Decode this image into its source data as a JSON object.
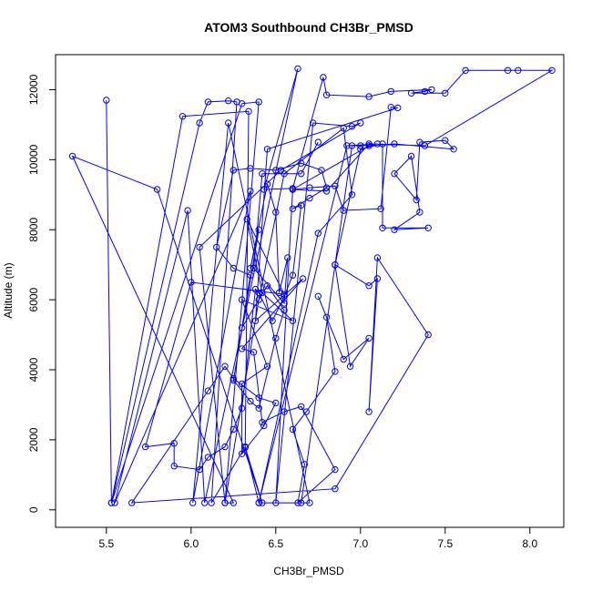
{
  "chart_data": {
    "type": "line",
    "title": "ATOM3 Southbound CH3Br_PMSD",
    "xlabel": "CH3Br_PMSD",
    "ylabel": "Altitude (m)",
    "xlim": [
      5.2,
      8.2
    ],
    "ylim": [
      -500,
      13000
    ],
    "x_ticks": [
      5.5,
      6.0,
      6.5,
      7.0,
      7.5,
      8.0
    ],
    "x_tick_labels": [
      "5.5",
      "6.0",
      "6.5",
      "7.0",
      "7.5",
      "8.0"
    ],
    "y_ticks": [
      0,
      2000,
      4000,
      6000,
      8000,
      10000,
      12000
    ],
    "y_tick_labels": [
      "0",
      "2000",
      "4000",
      "6000",
      "8000",
      "10000",
      "12000"
    ],
    "grid": false,
    "legend": "none",
    "marker": "open-circle",
    "series_color": "#0000ff",
    "series": [
      {
        "points": [
          [
            5.5,
            11700
          ],
          [
            5.53,
            200
          ],
          [
            6.05,
            11050
          ],
          [
            6.1,
            11650
          ],
          [
            6.22,
            11680
          ],
          [
            6.27,
            11650
          ],
          [
            6.12,
            200
          ],
          [
            6.32,
            1800
          ],
          [
            6.34,
            11380
          ],
          [
            5.95,
            11240
          ],
          [
            5.53,
            200
          ],
          [
            6.3,
            11600
          ],
          [
            6.4,
            11650
          ],
          [
            6.2,
            200
          ],
          [
            6.25,
            200
          ],
          [
            5.3,
            10100
          ],
          [
            5.8,
            9150
          ],
          [
            6.42,
            200
          ],
          [
            6.32,
            1780
          ],
          [
            6.4,
            200
          ],
          [
            6.7,
            200
          ],
          [
            6.22,
            11050
          ],
          [
            6.01,
            200
          ],
          [
            6.35,
            9100
          ],
          [
            5.55,
            200
          ],
          [
            5.98,
            8550
          ],
          [
            6.08,
            200
          ],
          [
            6.63,
            12600
          ],
          [
            6.43,
            9150
          ],
          [
            6.6,
            9180
          ],
          [
            6.78,
            12350
          ],
          [
            6.8,
            11850
          ],
          [
            7.05,
            11800
          ],
          [
            7.18,
            11950
          ],
          [
            7.42,
            12000
          ],
          [
            7.38,
            11950
          ],
          [
            7.3,
            11900
          ],
          [
            7.5,
            11900
          ],
          [
            7.62,
            12550
          ],
          [
            7.87,
            12550
          ],
          [
            7.93,
            12550
          ],
          [
            8.13,
            12550
          ],
          [
            7.38,
            10400
          ],
          [
            7.05,
            10450
          ],
          [
            6.8,
            9100
          ],
          [
            6.6,
            9150
          ],
          [
            6.5,
            200
          ],
          [
            6.72,
            11050
          ],
          [
            6.95,
            10950
          ],
          [
            7.0,
            11050
          ],
          [
            6.53,
            9700
          ],
          [
            6.05,
            7500
          ],
          [
            6.2,
            200
          ],
          [
            6.4,
            6000
          ],
          [
            6.55,
            9600
          ],
          [
            6.9,
            10900
          ],
          [
            6.95,
            9000
          ],
          [
            6.75,
            7900
          ],
          [
            6.4,
            200
          ],
          [
            6.92,
            10400
          ],
          [
            7.1,
            10450
          ],
          [
            7.0,
            10400
          ],
          [
            6.95,
            10400
          ],
          [
            6.65,
            200
          ],
          [
            6.85,
            7000
          ],
          [
            7.0,
            10300
          ],
          [
            7.13,
            10450
          ],
          [
            7.13,
            8050
          ],
          [
            7.4,
            8050
          ],
          [
            7.2,
            8000
          ],
          [
            7.35,
            8500
          ],
          [
            7.3,
            10100
          ],
          [
            7.2,
            9600
          ],
          [
            7.33,
            8850
          ],
          [
            7.35,
            10500
          ],
          [
            7.5,
            10550
          ],
          [
            7.55,
            10300
          ],
          [
            7.2,
            10450
          ],
          [
            7.05,
            10400
          ],
          [
            6.6,
            9150
          ],
          [
            6.7,
            9200
          ],
          [
            6.85,
            9250
          ],
          [
            6.9,
            8550
          ],
          [
            7.12,
            8600
          ],
          [
            7.18,
            11500
          ],
          [
            7.22,
            11480
          ],
          [
            6.45,
            10300
          ],
          [
            6.38,
            5400
          ],
          [
            6.66,
            6600
          ],
          [
            6.3,
            4600
          ],
          [
            6.37,
            4500
          ],
          [
            6.42,
            2500
          ],
          [
            6.55,
            2800
          ],
          [
            6.65,
            2950
          ],
          [
            6.85,
            1150
          ],
          [
            6.63,
            200
          ],
          [
            6.67,
            1300
          ],
          [
            6.6,
            2300
          ],
          [
            6.68,
            2800
          ],
          [
            6.85,
            3950
          ],
          [
            6.8,
            5500
          ],
          [
            6.75,
            6100
          ],
          [
            6.9,
            4300
          ],
          [
            7.05,
            4900
          ],
          [
            6.94,
            4100
          ],
          [
            6.85,
            7000
          ],
          [
            7.05,
            6400
          ],
          [
            7.1,
            6600
          ],
          [
            7.05,
            2800
          ],
          [
            7.1,
            7200
          ],
          [
            7.4,
            5000
          ],
          [
            6.85,
            600
          ],
          [
            5.65,
            200
          ],
          [
            6.1,
            3400
          ],
          [
            6.2,
            4100
          ],
          [
            6.25,
            3750
          ],
          [
            6.4,
            3200
          ],
          [
            6.5,
            3050
          ],
          [
            6.43,
            2400
          ],
          [
            6.3,
            1600
          ],
          [
            6.3,
            3600
          ],
          [
            6.45,
            4100
          ],
          [
            6.3,
            6000
          ],
          [
            6.6,
            5400
          ],
          [
            6.42,
            6200
          ],
          [
            6.33,
            8300
          ],
          [
            6.55,
            6150
          ],
          [
            6.0,
            6500
          ],
          [
            5.73,
            1800
          ],
          [
            5.9,
            1900
          ],
          [
            5.9,
            1250
          ],
          [
            6.05,
            1150
          ],
          [
            6.1,
            1500
          ],
          [
            6.2,
            1800
          ],
          [
            6.25,
            2300
          ],
          [
            6.3,
            2900
          ],
          [
            6.38,
            6300
          ],
          [
            6.4,
            6200
          ],
          [
            6.48,
            5400
          ],
          [
            6.55,
            6100
          ],
          [
            6.6,
            6700
          ],
          [
            6.65,
            8700
          ],
          [
            6.6,
            8600
          ],
          [
            6.7,
            8900
          ],
          [
            6.8,
            9200
          ],
          [
            6.77,
            9700
          ],
          [
            6.65,
            9900
          ],
          [
            6.5,
            9700
          ],
          [
            6.35,
            9750
          ],
          [
            6.25,
            9700
          ],
          [
            6.15,
            7500
          ],
          [
            6.25,
            6900
          ],
          [
            6.35,
            6700
          ],
          [
            6.3,
            5200
          ],
          [
            6.45,
            6400
          ],
          [
            6.55,
            5700
          ],
          [
            6.5,
            4900
          ],
          [
            6.4,
            2900
          ],
          [
            6.35,
            3100
          ],
          [
            6.25,
            3700
          ],
          [
            6.4,
            8000
          ],
          [
            6.35,
            6900
          ],
          [
            6.45,
            9300
          ],
          [
            6.5,
            8500
          ],
          [
            6.52,
            6200
          ],
          [
            6.57,
            7200
          ],
          [
            6.55,
            5900
          ],
          [
            6.37,
            6900
          ],
          [
            6.42,
            9600
          ],
          [
            6.65,
            9600
          ],
          [
            6.75,
            10500
          ]
        ]
      }
    ]
  }
}
